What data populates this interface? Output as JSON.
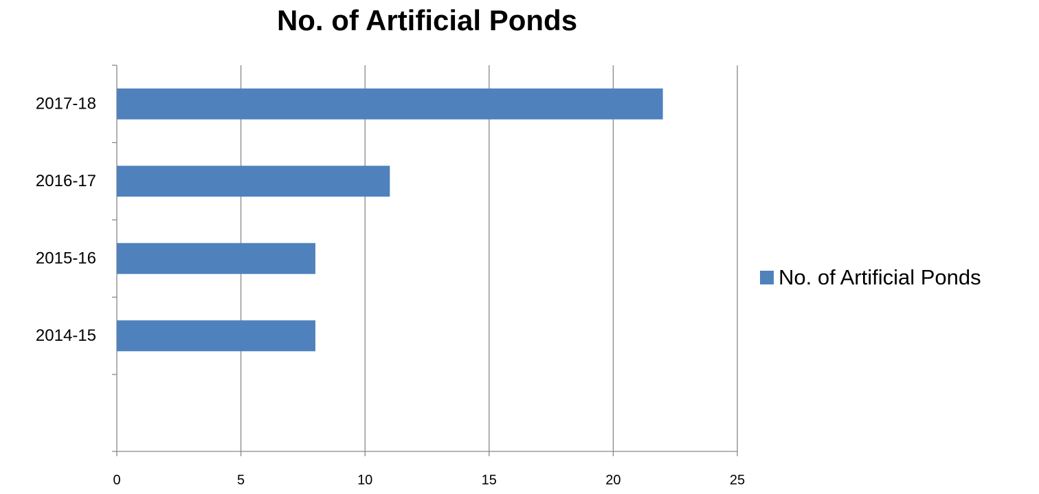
{
  "chart_data": {
    "type": "bar",
    "orientation": "horizontal",
    "title": "No. of Artificial Ponds",
    "categories": [
      "2014-15",
      "2015-16",
      "2016-17",
      "2017-18"
    ],
    "series": [
      {
        "name": "No. of Artificial Ponds",
        "values": [
          8,
          8,
          11,
          22
        ],
        "color": "#4f81bd"
      }
    ],
    "xlim": [
      0,
      25
    ],
    "x_ticks": [
      "0",
      "5",
      "10",
      "15",
      "20",
      "25"
    ],
    "xlabel": "",
    "ylabel": "",
    "grid": "vertical",
    "legend": "right"
  },
  "colors": {
    "bar": "#4f81bd",
    "gridline": "#878787",
    "axis": "#878787",
    "text": "#000000"
  }
}
